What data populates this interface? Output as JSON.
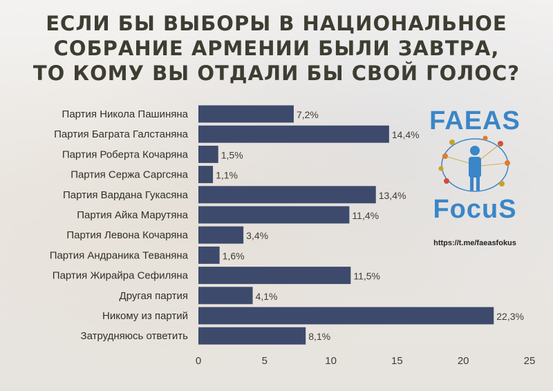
{
  "title_lines": [
    "Если бы выборы в Национальное",
    "собрание Армении были завтра,",
    "то кому вы отдали бы свой голос?"
  ],
  "logo": {
    "top_text": "FAEAS",
    "bottom_text": "FocuS",
    "link": "https://t.me/faeasfokus"
  },
  "colors": {
    "bar": "#3d4a6c",
    "text": "#3e3d32",
    "logo_blue": "#3a86c8"
  },
  "chart_data": {
    "type": "bar",
    "orientation": "horizontal",
    "categories": [
      "Партия Никола Пашиняна",
      "Партия Баграта Галстаняна",
      "Партия Роберта Кочаряна",
      "Партия Сержа Саргсяна",
      "Партия Вардана Гукасяна",
      "Партия Айка Марутяна",
      "Партия Левона Кочаряна",
      "Партия Андраника Теваняна",
      "Партия Жирайра Сефиляна",
      "Другая партия",
      "Никому из партий",
      "Затрудняюсь ответить"
    ],
    "values": [
      7.2,
      14.4,
      1.5,
      1.1,
      13.4,
      11.4,
      3.4,
      1.6,
      11.5,
      4.1,
      22.3,
      8.1
    ],
    "value_labels": [
      "7,2%",
      "14,4%",
      "1,5%",
      "1,1%",
      "13,4%",
      "11,4%",
      "3,4%",
      "1,6%",
      "11,5%",
      "4,1%",
      "22,3%",
      "8,1%"
    ],
    "xlim": [
      0,
      25
    ],
    "xticks": [
      "0",
      "5",
      "10",
      "15",
      "20",
      "25"
    ],
    "grid": false,
    "title": "Если бы выборы в Национальное собрание Армении были завтра, то кому вы отдали бы свой голос?"
  }
}
